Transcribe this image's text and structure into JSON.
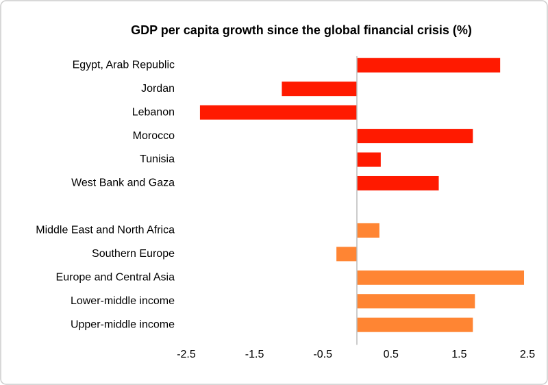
{
  "chart_data": {
    "type": "bar",
    "orientation": "horizontal",
    "title": "GDP per capita growth since the global financial crisis (%)",
    "categories": [
      "Egypt, Arab Republic",
      "Jordan",
      "Lebanon",
      "Morocco",
      "Tunisia",
      "West Bank and Gaza",
      null,
      "Middle East and North Africa",
      "Southern Europe",
      "Europe and Central Asia",
      "Lower-middle income",
      "Upper-middle income"
    ],
    "values": [
      2.1,
      -1.1,
      -2.3,
      1.7,
      0.35,
      1.2,
      null,
      0.33,
      -0.3,
      2.45,
      1.73,
      1.7
    ],
    "colors": [
      "#ff1a00",
      "#ff1a00",
      "#ff1a00",
      "#ff1a00",
      "#ff1a00",
      "#ff1a00",
      null,
      "#ff8533",
      "#ff8533",
      "#ff8533",
      "#ff8533",
      "#ff8533"
    ],
    "xlim": [
      -2.5,
      2.5
    ],
    "xticks": [
      -2.5,
      -1.5,
      -0.5,
      0.5,
      1.5,
      2.5
    ],
    "grid": false
  }
}
